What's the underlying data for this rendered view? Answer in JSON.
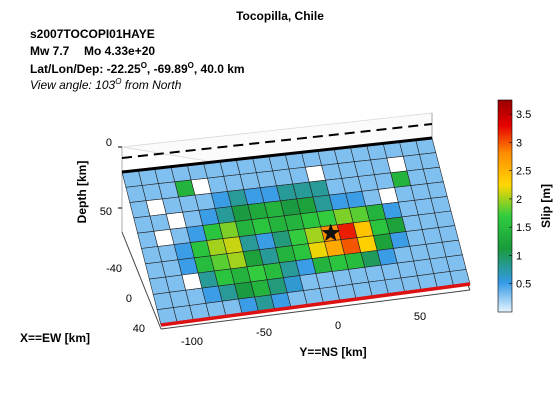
{
  "chart_data": {
    "type": "heatmap",
    "title": "Tocopilla, Chile",
    "info_lines": {
      "event_id": "s2007TOCOPI01HAYE",
      "magnitude": "Mw 7.7",
      "moment": "Mo 4.33e+20",
      "location_label": "Lat/Lon/Dep: -22.25",
      "location_lon": ", -69.89",
      "location_dep": ", 40.0 km",
      "view_prefix": "View angle: 103",
      "view_suffix": " from North",
      "degree_sup": "O"
    },
    "zlabel": "Depth [km]",
    "xlabel": "X==EW [km]",
    "ylabel": "Y==NS [km]",
    "depth_ticks": [
      "0",
      "50"
    ],
    "ns_ticks": [
      "-100",
      "-50",
      "0",
      "50"
    ],
    "ew_ticks": [
      "-40",
      "0",
      "40"
    ],
    "colorbar": {
      "label": "Slip [m]",
      "range": [
        0,
        3.75
      ],
      "ticks": [
        "0.5",
        "1",
        "1.5",
        "2",
        "2.5",
        "3",
        "3.5"
      ],
      "tick_values": [
        0.5,
        1,
        1.5,
        2,
        2.5,
        3,
        3.5
      ],
      "colormap": [
        "#e6f5ff",
        "#3399e6",
        "#1a9b3a",
        "#2ecc40",
        "#ffd700",
        "#ff8c00",
        "#e60000",
        "#990000"
      ]
    },
    "grid": {
      "rows": 10,
      "cols": 19,
      "slip": [
        [
          0.3,
          0.3,
          0.3,
          0.3,
          0.3,
          0.3,
          0.3,
          0.3,
          0.3,
          0.3,
          0.3,
          0.3,
          0.3,
          0.3,
          0.3,
          0.3,
          0.3,
          0.3,
          0.3
        ],
        [
          0.3,
          0.3,
          0.3,
          1.4,
          0,
          0.3,
          0.3,
          0.3,
          0.3,
          0.3,
          0.3,
          0,
          0.3,
          0.3,
          0.3,
          0.3,
          0,
          0.3,
          0.3
        ],
        [
          0.3,
          0,
          0.3,
          0.3,
          0.3,
          0.5,
          0.8,
          0.5,
          0.5,
          0.8,
          0.8,
          0.8,
          0.3,
          0.3,
          0.3,
          0.3,
          1.4,
          0.3,
          0.3
        ],
        [
          0.3,
          0.3,
          0,
          0.3,
          0.5,
          0.8,
          1.1,
          1.3,
          1.4,
          1.1,
          1.2,
          0.8,
          0.5,
          0.5,
          0.3,
          0,
          0.3,
          0.3,
          0.3
        ],
        [
          0.3,
          0,
          0.3,
          0.5,
          1.6,
          1.9,
          1.4,
          1.6,
          1.4,
          1.4,
          1.6,
          1.7,
          1.9,
          1.8,
          1.4,
          0.5,
          0.3,
          0.3,
          0.3
        ],
        [
          0.3,
          0.3,
          0.5,
          1.6,
          2.0,
          2.1,
          0.8,
          0.5,
          0.9,
          1.7,
          2.0,
          2.8,
          3.2,
          2.4,
          1.6,
          1.2,
          0.3,
          0.3,
          0.3
        ],
        [
          0.3,
          0.3,
          0.5,
          1.5,
          1.8,
          2.0,
          1.2,
          0.8,
          1.4,
          1.6,
          2.2,
          2.6,
          3.0,
          2.3,
          1.2,
          0.5,
          0.3,
          0.3,
          0.3
        ],
        [
          0.3,
          0.3,
          0,
          0.8,
          1.6,
          1.4,
          1.7,
          1.5,
          0.8,
          0.5,
          1.4,
          1.6,
          1.5,
          1.0,
          0.5,
          0.3,
          0.3,
          0.3,
          0.3
        ],
        [
          0.3,
          0.3,
          0.3,
          0.5,
          0.8,
          1.1,
          1.4,
          0.9,
          0.6,
          0.3,
          0.3,
          0.3,
          0.3,
          0.3,
          0.3,
          0.3,
          0.3,
          0.3,
          0.3
        ],
        [
          0.3,
          0.3,
          0.3,
          0.3,
          0.3,
          0.5,
          0.8,
          0.5,
          0.3,
          0.3,
          0.3,
          0.3,
          0.3,
          0.3,
          0.3,
          0.3,
          0.3,
          0.3,
          0.3
        ]
      ],
      "hypocenter": {
        "row": 5.5,
        "col": 11.5
      }
    }
  }
}
